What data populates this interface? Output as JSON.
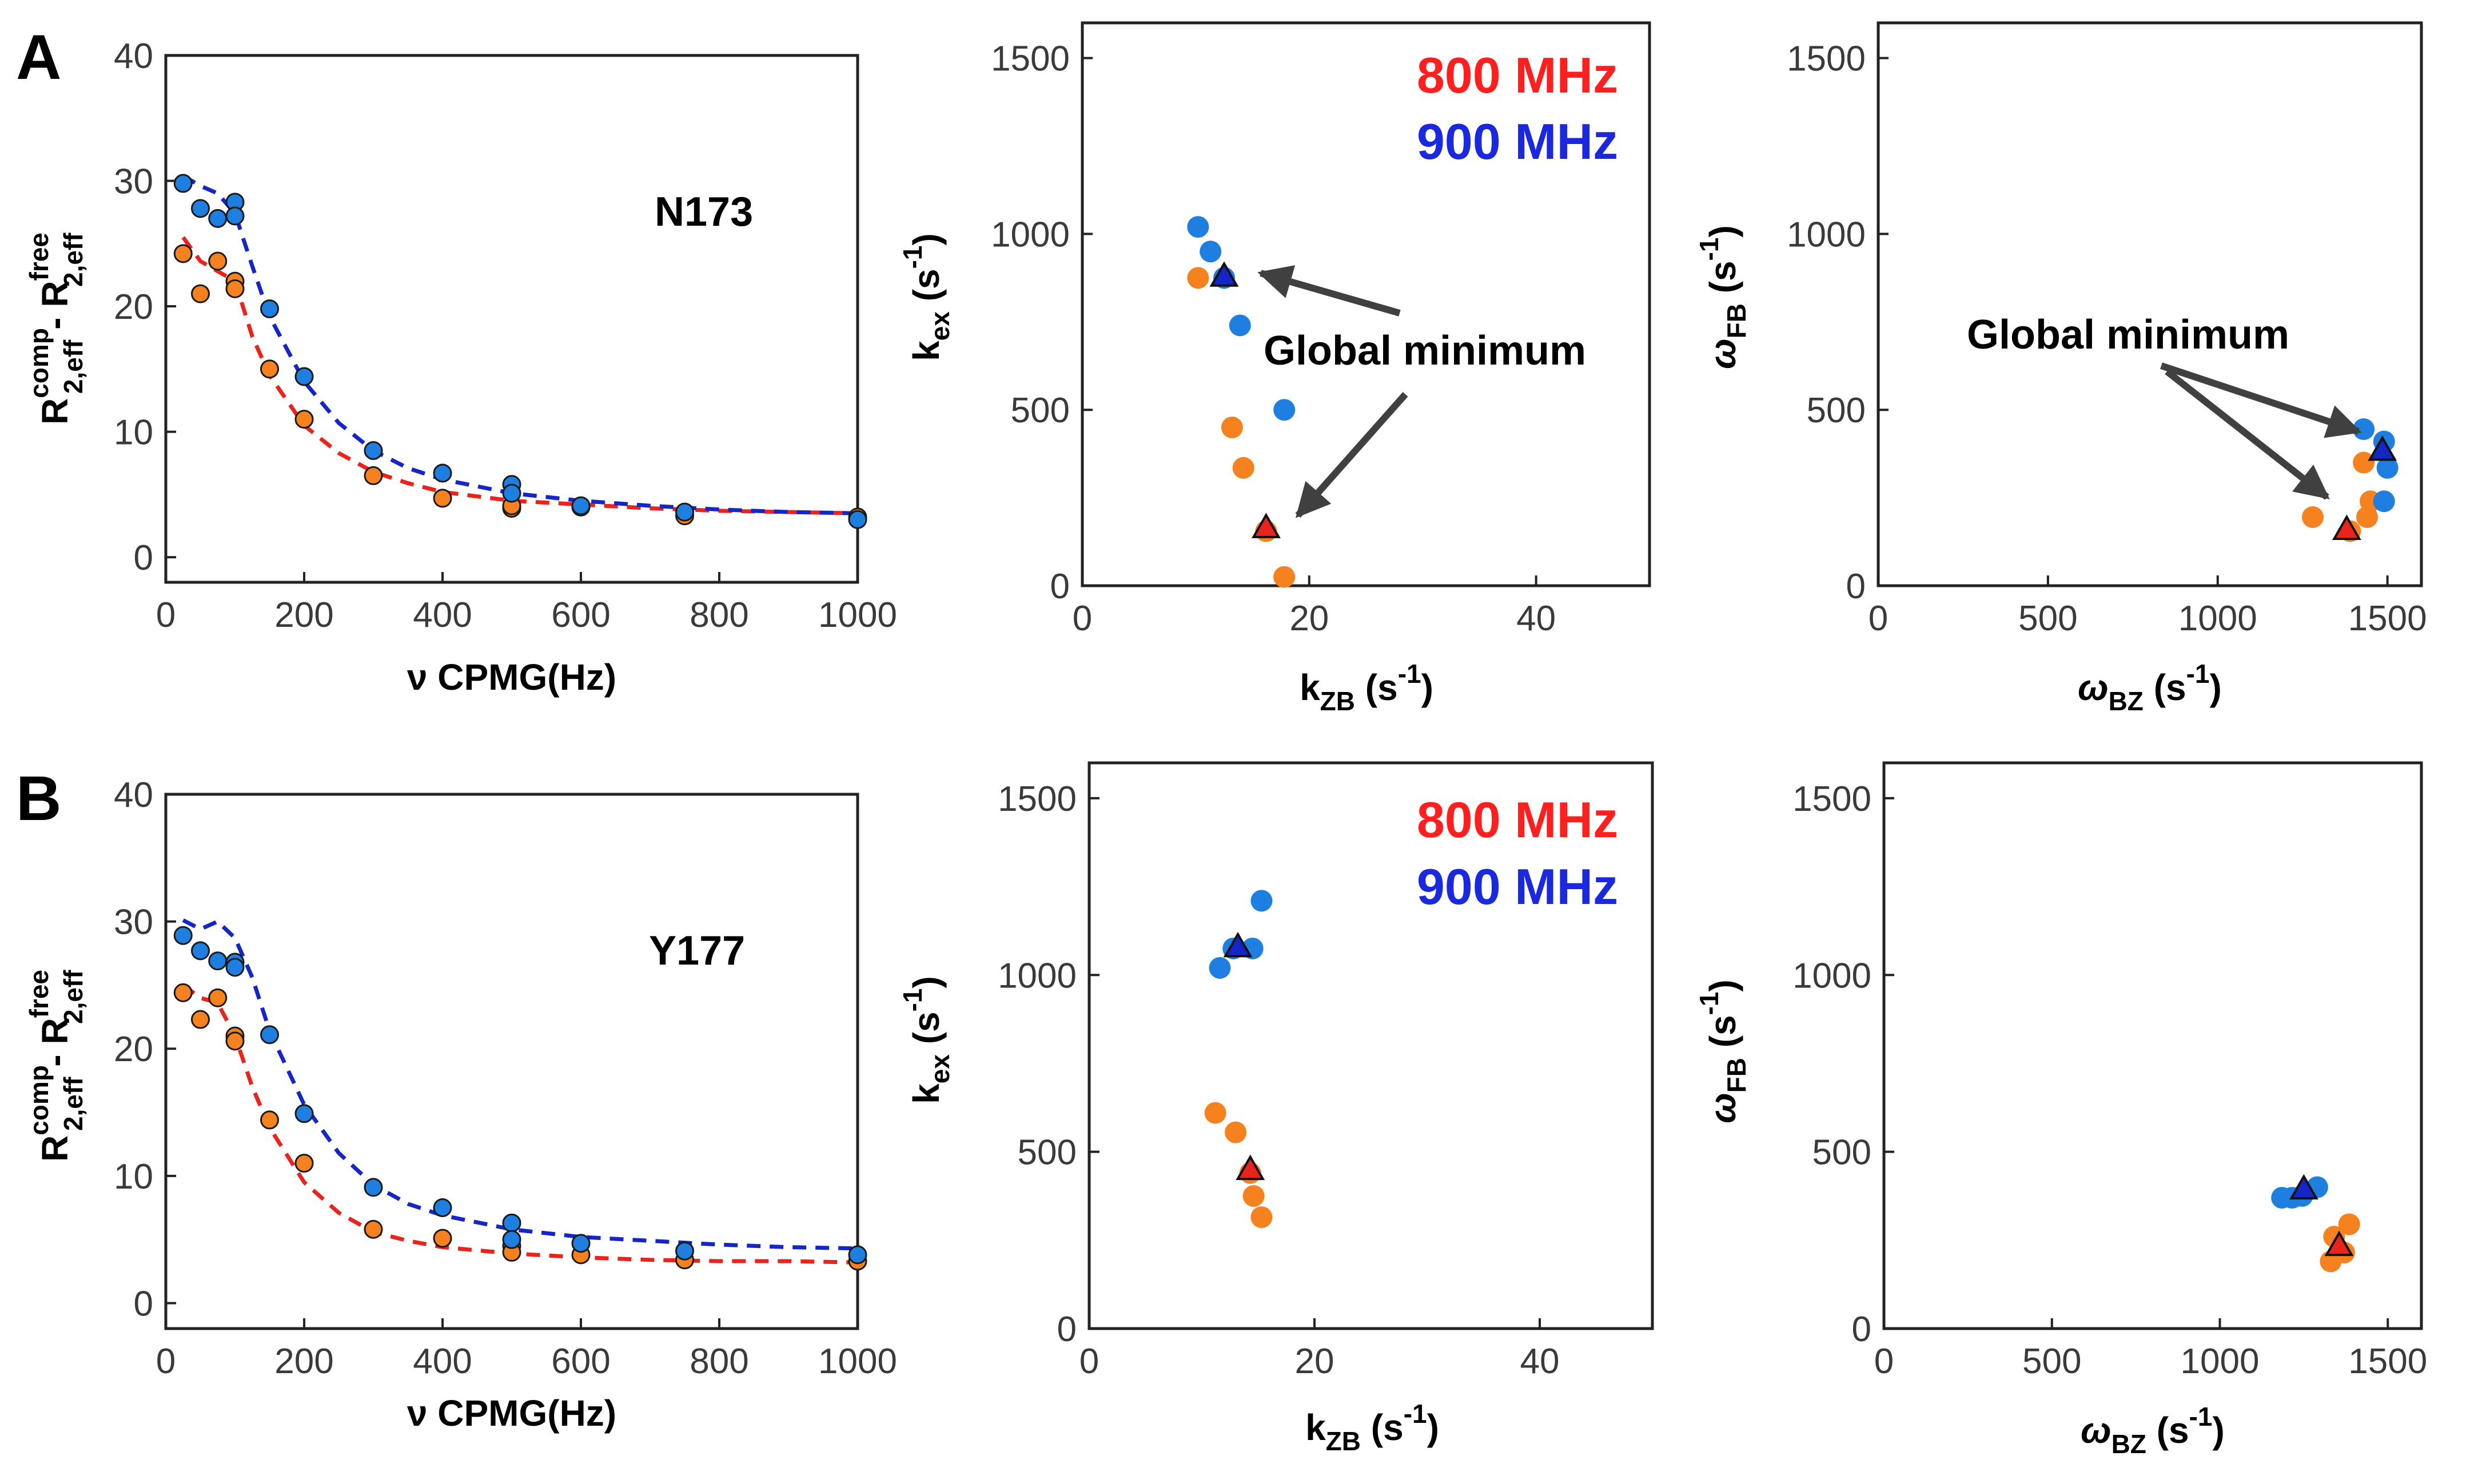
{
  "colors": {
    "series_800": "#f5821f",
    "series_900": "#1f7fe0",
    "fit_800": "#e8241c",
    "fit_900": "#1426c8",
    "legend_800": "#ff1f1f",
    "legend_900": "#1a28e0",
    "tri_800": "#e8241c",
    "tri_900": "#1426c8",
    "arrow": "#404040"
  },
  "rows": [
    {
      "letter": "A",
      "residue": "N173",
      "dispersion": {
        "xlabel": "ν CPMG(Hz)",
        "ylabel_main": "R",
        "ylabel_sup1": "comp",
        "ylabel_sub1": "2,eff",
        "ylabel_dash": " - R",
        "ylabel_sup2": "free",
        "ylabel_sub2": "2,eff",
        "xlim": [
          0,
          1000
        ],
        "ylim": [
          -2,
          40
        ],
        "xticks": [
          0,
          200,
          400,
          600,
          800,
          1000
        ],
        "yticks": [
          0,
          10,
          20,
          30,
          40
        ],
        "x": [
          25,
          50,
          75,
          100,
          100,
          150,
          200,
          300,
          400,
          500,
          500,
          600,
          750,
          1000
        ],
        "s800": [
          24.2,
          21.0,
          23.6,
          22.0,
          21.4,
          15.0,
          11.0,
          6.5,
          4.7,
          3.9,
          4.1,
          4.0,
          3.3,
          3.2
        ],
        "s900": [
          29.8,
          27.8,
          27.0,
          28.3,
          27.2,
          19.8,
          14.4,
          8.5,
          6.7,
          5.8,
          5.1,
          4.1,
          3.6,
          3.0
        ],
        "fit800": [
          [
            25,
            25.5
          ],
          [
            50,
            23.6
          ],
          [
            75,
            22.8
          ],
          [
            100,
            22.0
          ],
          [
            125,
            17.6
          ],
          [
            150,
            14.5
          ],
          [
            200,
            10.5
          ],
          [
            250,
            8.3
          ],
          [
            300,
            6.8
          ],
          [
            350,
            5.9
          ],
          [
            400,
            5.2
          ],
          [
            500,
            4.5
          ],
          [
            600,
            4.2
          ],
          [
            700,
            3.9
          ],
          [
            800,
            3.7
          ],
          [
            900,
            3.6
          ],
          [
            1000,
            3.5
          ]
        ],
        "fit900": [
          [
            25,
            30.4
          ],
          [
            50,
            29.6
          ],
          [
            75,
            29.0
          ],
          [
            100,
            27.4
          ],
          [
            125,
            23.2
          ],
          [
            150,
            19.2
          ],
          [
            200,
            14.0
          ],
          [
            250,
            10.7
          ],
          [
            300,
            8.5
          ],
          [
            350,
            7.1
          ],
          [
            400,
            6.2
          ],
          [
            500,
            5.1
          ],
          [
            600,
            4.5
          ],
          [
            700,
            4.1
          ],
          [
            800,
            3.8
          ],
          [
            900,
            3.6
          ],
          [
            1000,
            3.5
          ]
        ]
      },
      "kex": {
        "xlabel_main": "k",
        "xlabel_sub": "ZB",
        "xlabel_unit": " (s",
        "xlabel_exp": "-1",
        "xlabel_close": ")",
        "ylabel_main": "k",
        "ylabel_sub": "ex",
        "ylabel_unit": " (s",
        "ylabel_exp": "-1",
        "ylabel_close": ")",
        "xlim": [
          0,
          50
        ],
        "ylim": [
          0,
          1600
        ],
        "xticks": [
          0,
          20,
          40
        ],
        "yticks": [
          0,
          500,
          1000,
          1500
        ],
        "legend_800": "800 MHz",
        "legend_900": "900 MHz",
        "annotation": "Global minimum",
        "p800": [
          [
            10.2,
            875
          ],
          [
            13.2,
            450
          ],
          [
            14.2,
            335
          ],
          [
            16.2,
            155
          ],
          [
            17.8,
            25
          ]
        ],
        "p900": [
          [
            10.2,
            1020
          ],
          [
            11.3,
            950
          ],
          [
            12.5,
            875
          ],
          [
            13.9,
            740
          ],
          [
            17.8,
            500
          ]
        ],
        "t900": [
          12.5,
          880
        ],
        "t800": [
          16.2,
          165
        ]
      },
      "omega": {
        "xlabel_main": "ω",
        "xlabel_sub": "BZ",
        "xlabel_unit": " (s",
        "xlabel_exp": "-1",
        "xlabel_close": ")",
        "ylabel_main": "ω",
        "ylabel_sub": "FB",
        "ylabel_unit": " (s",
        "ylabel_exp": "-1",
        "ylabel_close": ")",
        "xlim": [
          0,
          1600
        ],
        "ylim": [
          0,
          1600
        ],
        "xticks": [
          0,
          500,
          1000,
          1500
        ],
        "yticks": [
          0,
          500,
          1000,
          1500
        ],
        "annotation": "Global minimum",
        "p800": [
          [
            1280,
            195
          ],
          [
            1390,
            155
          ],
          [
            1430,
            350
          ],
          [
            1440,
            195
          ],
          [
            1450,
            240
          ]
        ],
        "p900": [
          [
            1430,
            445
          ],
          [
            1490,
            410
          ],
          [
            1500,
            335
          ],
          [
            1490,
            240
          ]
        ],
        "t900": [
          1485,
          385
        ],
        "t800": [
          1380,
          160
        ]
      }
    },
    {
      "letter": "B",
      "residue": "Y177",
      "dispersion": {
        "xlabel": "ν CPMG(Hz)",
        "ylabel_main": "R",
        "ylabel_sup1": "comp",
        "ylabel_sub1": "2,eff",
        "ylabel_dash": " - R",
        "ylabel_sup2": "free",
        "ylabel_sub2": "2,eff",
        "xlim": [
          0,
          1000
        ],
        "ylim": [
          -2,
          40
        ],
        "xticks": [
          0,
          200,
          400,
          600,
          800,
          1000
        ],
        "yticks": [
          0,
          10,
          20,
          30,
          40
        ],
        "x": [
          25,
          50,
          75,
          100,
          100,
          150,
          200,
          300,
          400,
          500,
          500,
          600,
          750,
          1000
        ],
        "s800": [
          24.4,
          22.3,
          24.0,
          21.0,
          20.6,
          14.4,
          11.0,
          5.8,
          5.1,
          4.5,
          4.0,
          3.8,
          3.4,
          3.3
        ],
        "s900": [
          28.9,
          27.7,
          26.9,
          26.8,
          26.4,
          21.1,
          14.9,
          9.1,
          7.5,
          6.3,
          5.0,
          4.7,
          4.1,
          3.8
        ],
        "fit800": [
          [
            25,
            25.0
          ],
          [
            50,
            24.0
          ],
          [
            75,
            23.6
          ],
          [
            100,
            21.0
          ],
          [
            125,
            17.0
          ],
          [
            150,
            13.8
          ],
          [
            200,
            9.5
          ],
          [
            250,
            7.1
          ],
          [
            300,
            5.6
          ],
          [
            350,
            4.9
          ],
          [
            400,
            4.4
          ],
          [
            500,
            3.9
          ],
          [
            600,
            3.6
          ],
          [
            700,
            3.4
          ],
          [
            800,
            3.3
          ],
          [
            900,
            3.3
          ],
          [
            1000,
            3.2
          ]
        ],
        "fit900": [
          [
            25,
            30.1
          ],
          [
            50,
            29.4
          ],
          [
            75,
            30.0
          ],
          [
            100,
            28.7
          ],
          [
            125,
            25.6
          ],
          [
            150,
            21.4
          ],
          [
            200,
            15.6
          ],
          [
            250,
            11.8
          ],
          [
            300,
            9.3
          ],
          [
            350,
            7.8
          ],
          [
            400,
            6.9
          ],
          [
            500,
            5.8
          ],
          [
            600,
            5.2
          ],
          [
            700,
            4.9
          ],
          [
            800,
            4.6
          ],
          [
            900,
            4.4
          ],
          [
            1000,
            4.3
          ]
        ]
      },
      "kex": {
        "xlabel_main": "k",
        "xlabel_sub": "ZB",
        "xlabel_unit": " (s",
        "xlabel_exp": "-1",
        "xlabel_close": ")",
        "ylabel_main": "k",
        "ylabel_sub": "ex",
        "ylabel_unit": " (s",
        "ylabel_exp": "-1",
        "ylabel_close": ")",
        "xlim": [
          0,
          50
        ],
        "ylim": [
          0,
          1600
        ],
        "xticks": [
          0,
          20,
          40
        ],
        "yticks": [
          0,
          500,
          1000,
          1500
        ],
        "legend_800": "800 MHz",
        "legend_900": "900 MHz",
        "p800": [
          [
            11.2,
            610
          ],
          [
            13.0,
            555
          ],
          [
            14.3,
            440
          ],
          [
            14.6,
            375
          ],
          [
            15.3,
            315
          ]
        ],
        "p900": [
          [
            11.6,
            1020
          ],
          [
            12.8,
            1075
          ],
          [
            14.5,
            1075
          ],
          [
            15.3,
            1210
          ]
        ],
        "t900": [
          13.2,
          1080
        ],
        "t800": [
          14.3,
          450
        ]
      },
      "omega": {
        "xlabel_main": "ω",
        "xlabel_sub": "BZ",
        "xlabel_unit": " (s",
        "xlabel_exp": "-1",
        "xlabel_close": ")",
        "ylabel_main": "ω",
        "ylabel_sub": "FB",
        "ylabel_unit": " (s",
        "ylabel_exp": "-1",
        "ylabel_close": ")",
        "xlim": [
          0,
          1600
        ],
        "ylim": [
          0,
          1600
        ],
        "xticks": [
          0,
          500,
          1000,
          1500
        ],
        "yticks": [
          0,
          500,
          1000,
          1500
        ],
        "p800": [
          [
            1330,
            190
          ],
          [
            1340,
            260
          ],
          [
            1385,
            295
          ],
          [
            1370,
            215
          ]
        ],
        "p900": [
          [
            1185,
            370
          ],
          [
            1215,
            370
          ],
          [
            1245,
            375
          ],
          [
            1290,
            400
          ]
        ],
        "t900": [
          1250,
          395
        ],
        "t800": [
          1355,
          235
        ]
      }
    }
  ],
  "chart_data": [
    {
      "type": "scatter",
      "title": "N173",
      "xlabel": "ν CPMG(Hz)",
      "ylabel": "R2,eff comp - R2,eff free",
      "xlim": [
        0,
        1000
      ],
      "ylim": [
        -2,
        40
      ],
      "x": [
        25,
        50,
        75,
        100,
        100,
        150,
        200,
        300,
        400,
        500,
        500,
        600,
        750,
        1000
      ],
      "series": [
        {
          "name": "800 MHz",
          "values": [
            24.2,
            21.0,
            23.6,
            22.0,
            21.4,
            15.0,
            11.0,
            6.5,
            4.7,
            3.9,
            4.1,
            4.0,
            3.3,
            3.2
          ]
        },
        {
          "name": "900 MHz",
          "values": [
            29.8,
            27.8,
            27.0,
            28.3,
            27.2,
            19.8,
            14.4,
            8.5,
            6.7,
            5.8,
            5.1,
            4.1,
            3.6,
            3.0
          ]
        }
      ]
    },
    {
      "type": "scatter",
      "title": "N173 kex vs kZB",
      "xlabel": "kZB (s-1)",
      "ylabel": "kex (s-1)",
      "xlim": [
        0,
        50
      ],
      "ylim": [
        0,
        1600
      ],
      "series": [
        {
          "name": "800 MHz",
          "points": [
            [
              10.2,
              875
            ],
            [
              13.2,
              450
            ],
            [
              14.2,
              335
            ],
            [
              16.2,
              155
            ],
            [
              17.8,
              25
            ]
          ],
          "global_minimum": [
            16.2,
            165
          ]
        },
        {
          "name": "900 MHz",
          "points": [
            [
              10.2,
              1020
            ],
            [
              11.3,
              950
            ],
            [
              12.5,
              875
            ],
            [
              13.9,
              740
            ],
            [
              17.8,
              500
            ]
          ],
          "global_minimum": [
            12.5,
            880
          ]
        }
      ]
    },
    {
      "type": "scatter",
      "title": "N173 ωFB vs ωBZ",
      "xlabel": "ωBZ (s-1)",
      "ylabel": "ωFB (s-1)",
      "xlim": [
        0,
        1600
      ],
      "ylim": [
        0,
        1600
      ],
      "series": [
        {
          "name": "800 MHz",
          "points": [
            [
              1280,
              195
            ],
            [
              1390,
              155
            ],
            [
              1430,
              350
            ],
            [
              1440,
              195
            ],
            [
              1450,
              240
            ]
          ],
          "global_minimum": [
            1380,
            160
          ]
        },
        {
          "name": "900 MHz",
          "points": [
            [
              1430,
              445
            ],
            [
              1490,
              410
            ],
            [
              1500,
              335
            ],
            [
              1490,
              240
            ]
          ],
          "global_minimum": [
            1485,
            385
          ]
        }
      ]
    },
    {
      "type": "scatter",
      "title": "Y177",
      "xlabel": "ν CPMG(Hz)",
      "ylabel": "R2,eff comp - R2,eff free",
      "xlim": [
        0,
        1000
      ],
      "ylim": [
        -2,
        40
      ],
      "x": [
        25,
        50,
        75,
        100,
        100,
        150,
        200,
        300,
        400,
        500,
        500,
        600,
        750,
        1000
      ],
      "series": [
        {
          "name": "800 MHz",
          "values": [
            24.4,
            22.3,
            24.0,
            21.0,
            20.6,
            14.4,
            11.0,
            5.8,
            5.1,
            4.5,
            4.0,
            3.8,
            3.4,
            3.3
          ]
        },
        {
          "name": "900 MHz",
          "values": [
            28.9,
            27.7,
            26.9,
            26.8,
            26.4,
            21.1,
            14.9,
            9.1,
            7.5,
            6.3,
            5.0,
            4.7,
            4.1,
            3.8
          ]
        }
      ]
    },
    {
      "type": "scatter",
      "title": "Y177 kex vs kZB",
      "xlabel": "kZB (s-1)",
      "ylabel": "kex (s-1)",
      "xlim": [
        0,
        50
      ],
      "ylim": [
        0,
        1600
      ],
      "series": [
        {
          "name": "800 MHz",
          "points": [
            [
              11.2,
              610
            ],
            [
              13.0,
              555
            ],
            [
              14.3,
              440
            ],
            [
              14.6,
              375
            ],
            [
              15.3,
              315
            ]
          ],
          "global_minimum": [
            14.3,
            450
          ]
        },
        {
          "name": "900 MHz",
          "points": [
            [
              11.6,
              1020
            ],
            [
              12.8,
              1075
            ],
            [
              14.5,
              1075
            ],
            [
              15.3,
              1210
            ]
          ],
          "global_minimum": [
            13.2,
            1080
          ]
        }
      ]
    },
    {
      "type": "scatter",
      "title": "Y177 ωFB vs ωBZ",
      "xlabel": "ωBZ (s-1)",
      "ylabel": "ωFB (s-1)",
      "xlim": [
        0,
        1600
      ],
      "ylim": [
        0,
        1600
      ],
      "series": [
        {
          "name": "800 MHz",
          "points": [
            [
              1330,
              190
            ],
            [
              1340,
              260
            ],
            [
              1385,
              295
            ],
            [
              1370,
              215
            ]
          ],
          "global_minimum": [
            1355,
            235
          ]
        },
        {
          "name": "900 MHz",
          "points": [
            [
              1185,
              370
            ],
            [
              1215,
              370
            ],
            [
              1245,
              375
            ],
            [
              1290,
              400
            ]
          ],
          "global_minimum": [
            1250,
            395
          ]
        }
      ]
    }
  ]
}
